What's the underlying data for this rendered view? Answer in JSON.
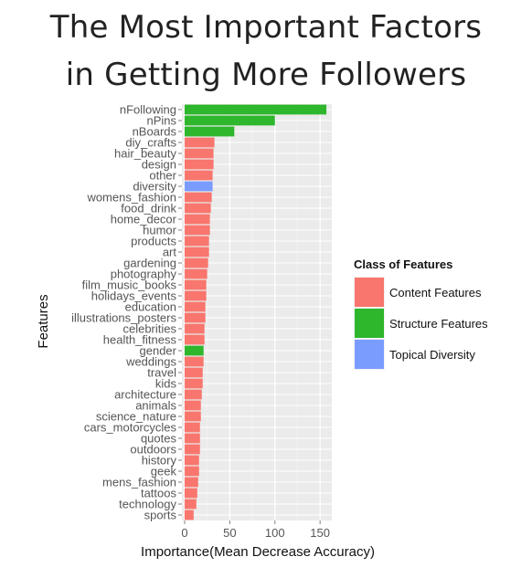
{
  "title_lines": [
    "The Most Important Factors",
    "in Getting More Followers"
  ],
  "chart_data": {
    "type": "bar",
    "orientation": "horizontal",
    "xlabel": "Importance(Mean Decrease Accuracy)",
    "ylabel": "Features",
    "xlim": [
      -3,
      163
    ],
    "xticks": [
      0,
      50,
      100,
      150
    ],
    "grid": true,
    "legend": {
      "title": "Class of Features",
      "placement": "right",
      "items": [
        {
          "label": "Content Features",
          "color": "#F8766D"
        },
        {
          "label": "Structure Features",
          "color": "#2EB62C"
        },
        {
          "label": "Topical Diversity",
          "color": "#7B9CFF"
        }
      ]
    },
    "bars": [
      {
        "feature": "nFollowing",
        "value": 157,
        "class": "Structure Features"
      },
      {
        "feature": "nPins",
        "value": 100,
        "class": "Structure Features"
      },
      {
        "feature": "nBoards",
        "value": 55,
        "class": "Structure Features"
      },
      {
        "feature": "diy_crafts",
        "value": 33,
        "class": "Content Features"
      },
      {
        "feature": "hair_beauty",
        "value": 32,
        "class": "Content Features"
      },
      {
        "feature": "design",
        "value": 32,
        "class": "Content Features"
      },
      {
        "feature": "other",
        "value": 31,
        "class": "Content Features"
      },
      {
        "feature": "diversity",
        "value": 31,
        "class": "Topical Diversity"
      },
      {
        "feature": "womens_fashion",
        "value": 30,
        "class": "Content Features"
      },
      {
        "feature": "food_drink",
        "value": 29,
        "class": "Content Features"
      },
      {
        "feature": "home_decor",
        "value": 28,
        "class": "Content Features"
      },
      {
        "feature": "humor",
        "value": 28,
        "class": "Content Features"
      },
      {
        "feature": "products",
        "value": 27,
        "class": "Content Features"
      },
      {
        "feature": "art",
        "value": 27,
        "class": "Content Features"
      },
      {
        "feature": "gardening",
        "value": 26,
        "class": "Content Features"
      },
      {
        "feature": "photography",
        "value": 25,
        "class": "Content Features"
      },
      {
        "feature": "film_music_books",
        "value": 24,
        "class": "Content Features"
      },
      {
        "feature": "holidays_events",
        "value": 24,
        "class": "Content Features"
      },
      {
        "feature": "education",
        "value": 23,
        "class": "Content Features"
      },
      {
        "feature": "illustrations_posters",
        "value": 23,
        "class": "Content Features"
      },
      {
        "feature": "celebrities",
        "value": 22,
        "class": "Content Features"
      },
      {
        "feature": "health_fitness",
        "value": 22,
        "class": "Content Features"
      },
      {
        "feature": "gender",
        "value": 21,
        "class": "Structure Features"
      },
      {
        "feature": "weddings",
        "value": 21,
        "class": "Content Features"
      },
      {
        "feature": "travel",
        "value": 20,
        "class": "Content Features"
      },
      {
        "feature": "kids",
        "value": 20,
        "class": "Content Features"
      },
      {
        "feature": "architecture",
        "value": 19,
        "class": "Content Features"
      },
      {
        "feature": "animals",
        "value": 18,
        "class": "Content Features"
      },
      {
        "feature": "science_nature",
        "value": 18,
        "class": "Content Features"
      },
      {
        "feature": "cars_motorcycles",
        "value": 17,
        "class": "Content Features"
      },
      {
        "feature": "quotes",
        "value": 17,
        "class": "Content Features"
      },
      {
        "feature": "outdoors",
        "value": 17,
        "class": "Content Features"
      },
      {
        "feature": "history",
        "value": 16,
        "class": "Content Features"
      },
      {
        "feature": "geek",
        "value": 16,
        "class": "Content Features"
      },
      {
        "feature": "mens_fashion",
        "value": 15,
        "class": "Content Features"
      },
      {
        "feature": "tattoos",
        "value": 14,
        "class": "Content Features"
      },
      {
        "feature": "technology",
        "value": 13,
        "class": "Content Features"
      },
      {
        "feature": "sports",
        "value": 10,
        "class": "Content Features"
      }
    ]
  }
}
